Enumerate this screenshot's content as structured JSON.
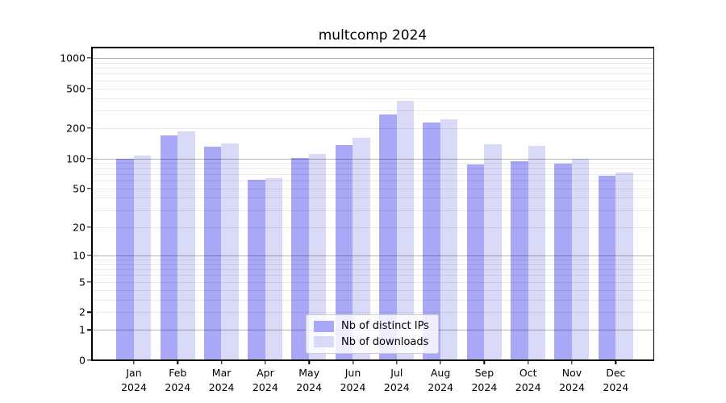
{
  "title": "multcomp 2024",
  "chart_data": {
    "type": "bar",
    "title": "multcomp 2024",
    "xlabel": "",
    "ylabel": "",
    "scale": "log1p",
    "categories": [
      "Jan",
      "Feb",
      "Mar",
      "Apr",
      "May",
      "Jun",
      "Jul",
      "Aug",
      "Sep",
      "Oct",
      "Nov",
      "Dec"
    ],
    "xtick_year": "2024",
    "series": [
      {
        "name": "Nb of distinct IPs",
        "color": "#a8a8f7",
        "values": [
          100,
          169,
          131,
          61,
          101,
          137,
          275,
          228,
          87,
          94,
          88,
          67
        ]
      },
      {
        "name": "Nb of downloads",
        "color": "#d9d9f8",
        "values": [
          106,
          185,
          140,
          63,
          111,
          160,
          375,
          246,
          138,
          133,
          100,
          72
        ]
      }
    ],
    "ylim": [
      0,
      1270
    ],
    "yticks": [
      1000,
      500,
      200,
      100,
      50,
      20,
      10,
      5,
      2,
      1,
      0
    ],
    "grid": "major and minor horizontal gridlines, log decades",
    "legend_position": "inside bottom-center"
  }
}
